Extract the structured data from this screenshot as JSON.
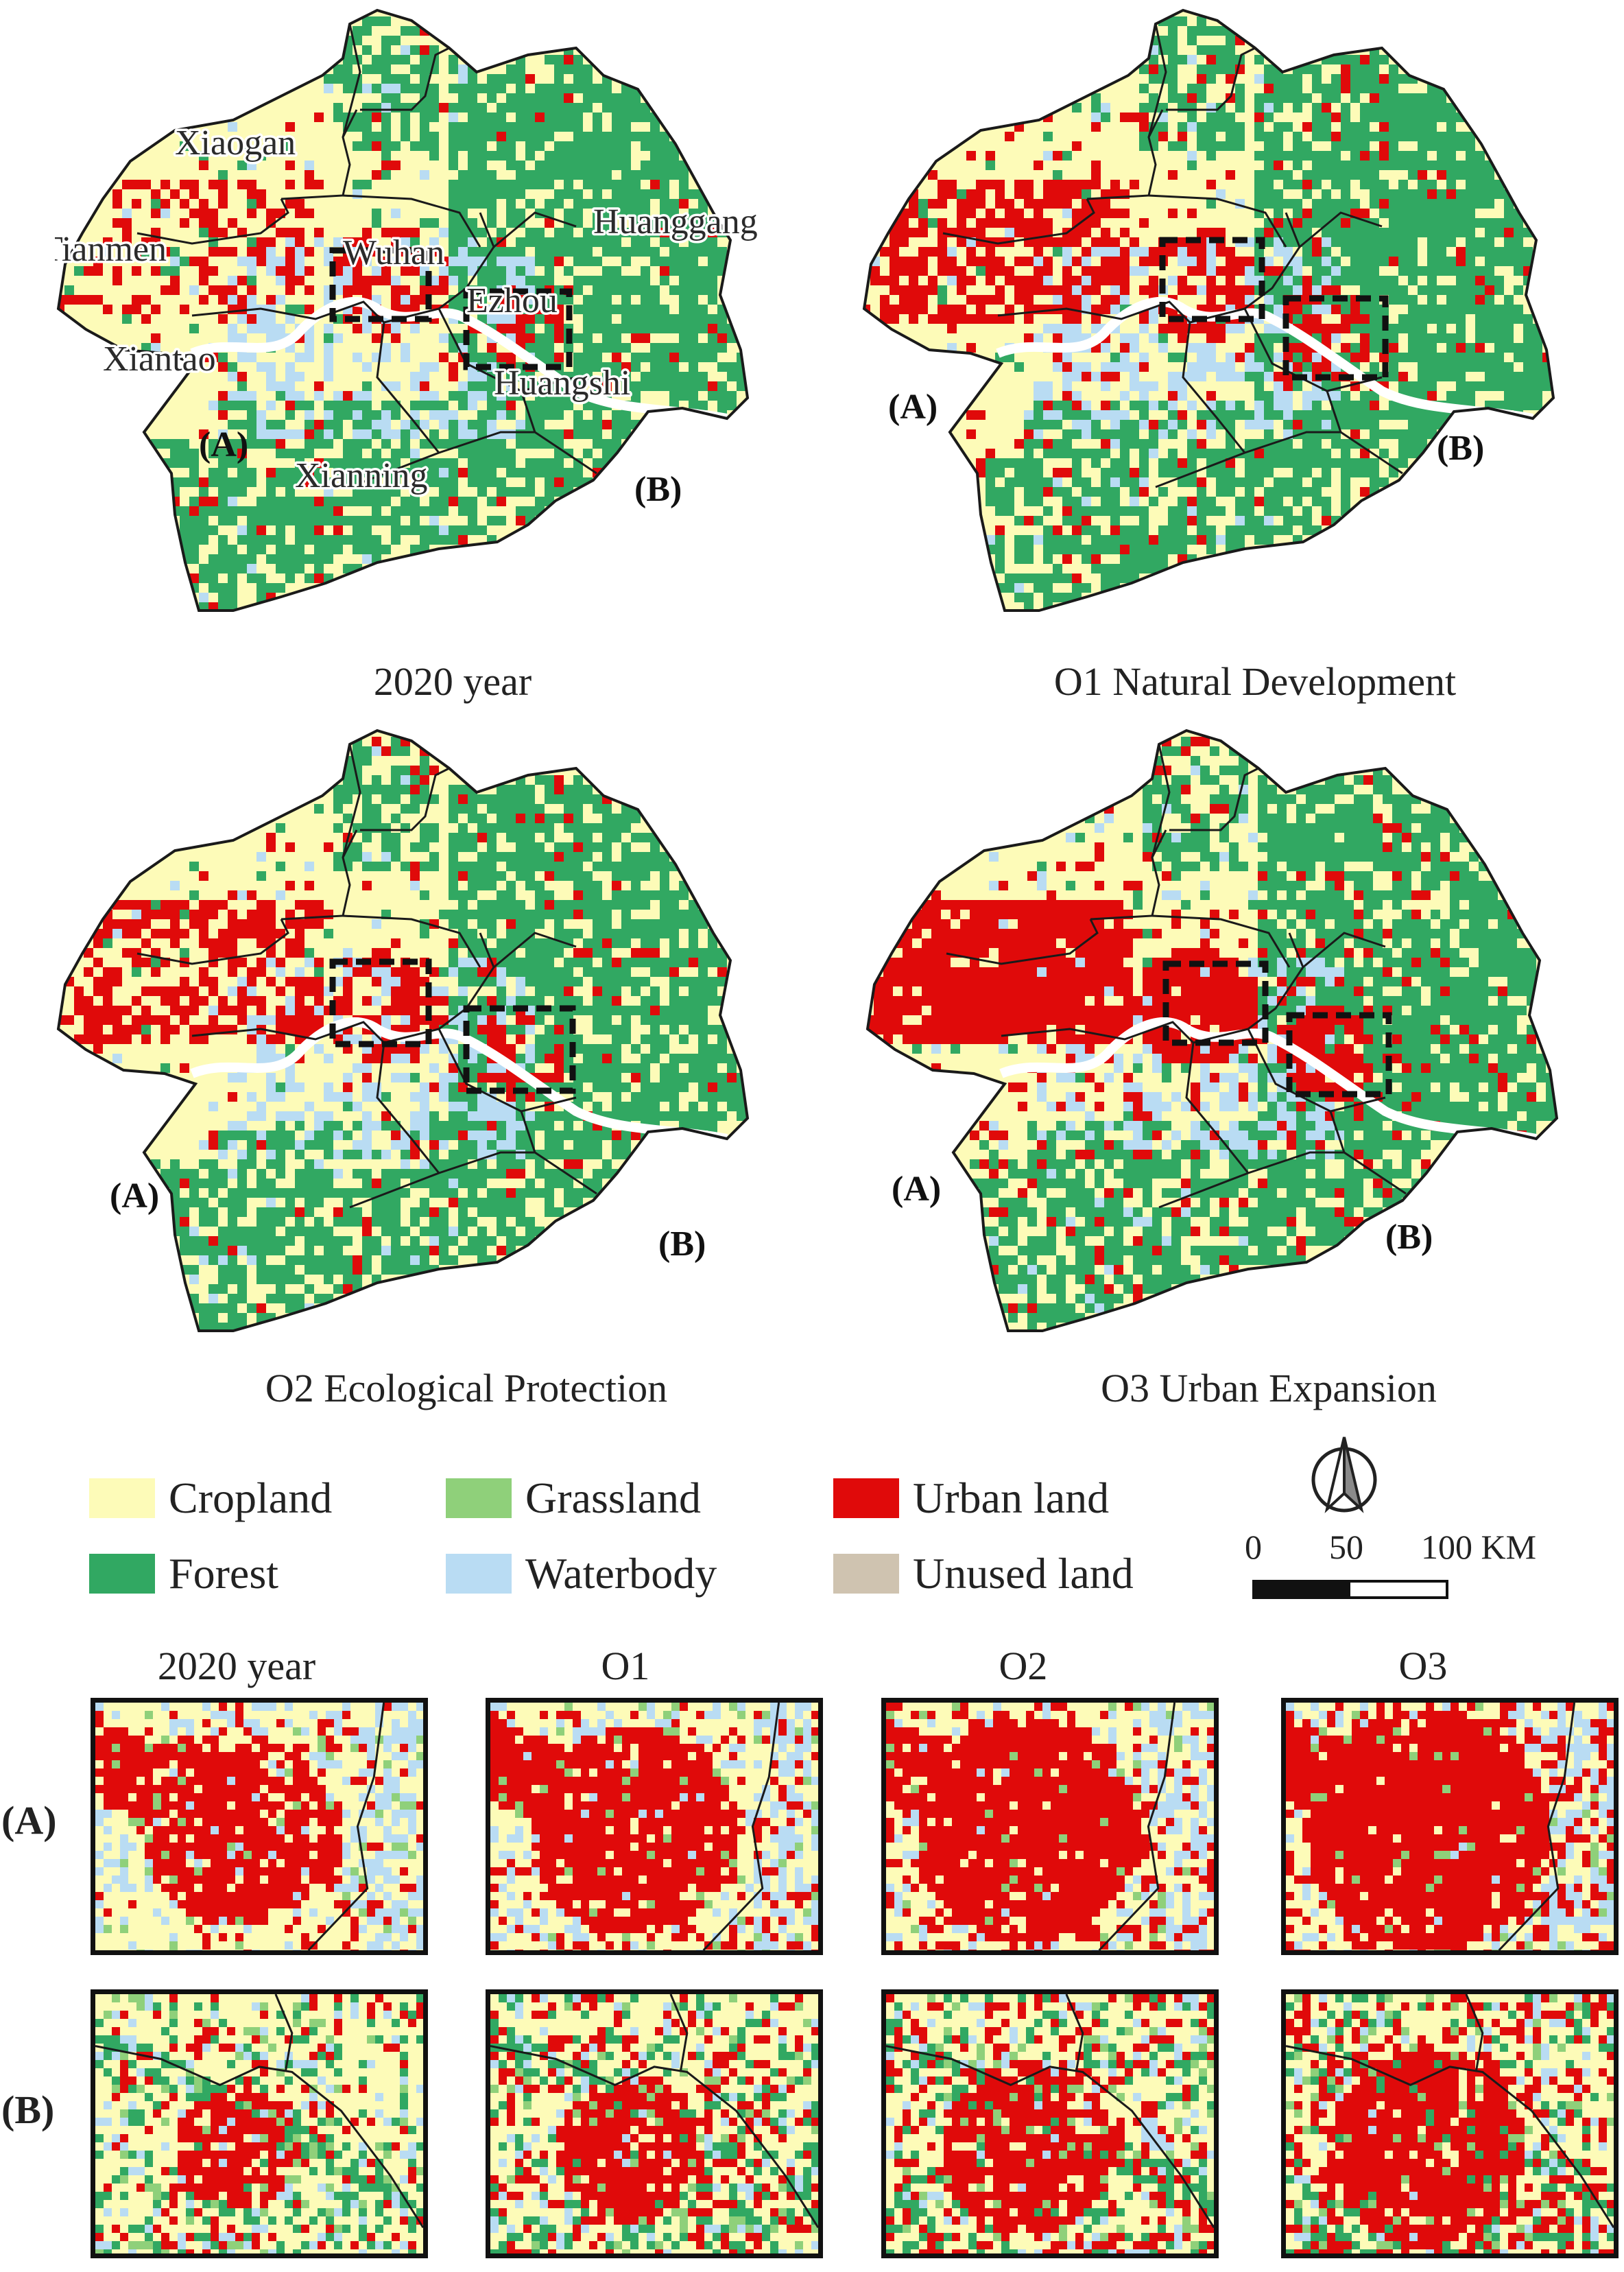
{
  "colors": {
    "cropland": "#fdfbb8",
    "forest": "#31a862",
    "grassland": "#8fd07a",
    "waterbody": "#b9dcf3",
    "urban": "#e00a0a",
    "unused": "#cfc3b0",
    "boundary": "#1a1a1a"
  },
  "maps": [
    {
      "caption": "2020 year",
      "urban_level": 0.18
    },
    {
      "caption": "O1 Natural Development",
      "urban_level": 0.28
    },
    {
      "caption": "O2 Ecological Protection",
      "urban_level": 0.24
    },
    {
      "caption": "O3 Urban Expansion",
      "urban_level": 0.4
    }
  ],
  "city_labels": [
    "Xiaogan",
    "Tianmen",
    "Wuhan",
    "Huanggang",
    "Ezhou",
    "Xiantao",
    "Huangshi",
    "Xianning"
  ],
  "zoom_tags": {
    "a": "(A)",
    "b": "(B)"
  },
  "legend": [
    {
      "label": "Cropland",
      "color_key": "cropland"
    },
    {
      "label": "Grassland",
      "color_key": "grassland"
    },
    {
      "label": "Urban land",
      "color_key": "urban"
    },
    {
      "label": "Forest",
      "color_key": "forest"
    },
    {
      "label": "Waterbody",
      "color_key": "waterbody"
    },
    {
      "label": "Unused land",
      "color_key": "unused"
    }
  ],
  "scale_bar": {
    "ticks": [
      "0",
      "50",
      "100 KM"
    ]
  },
  "north_arrow_icon": "north-arrow-icon",
  "inset_columns": [
    "2020 year",
    "O1",
    "O2",
    "O3"
  ],
  "inset_rows": [
    "(A)",
    "(B)"
  ]
}
